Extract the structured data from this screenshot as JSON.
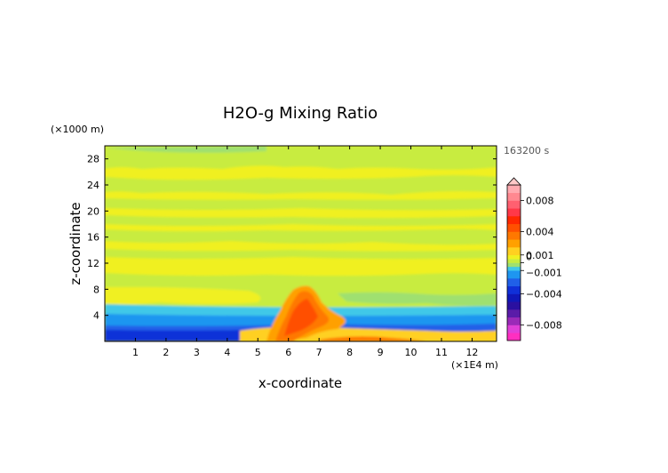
{
  "chart_data": {
    "type": "heatmap",
    "title": "H2O-g Mixing Ratio",
    "xlabel": "x-coordinate",
    "ylabel": "z-coordinate",
    "x_unit_label": "(×1E4 m)",
    "y_unit_label": "(×1000 m)",
    "time_label": "163200 s",
    "xlim": [
      0,
      12.8
    ],
    "ylim": [
      0,
      30
    ],
    "x_ticks": [
      1,
      2,
      3,
      4,
      5,
      6,
      7,
      8,
      9,
      10,
      11,
      12
    ],
    "y_ticks": [
      4,
      8,
      12,
      16,
      20,
      24,
      28
    ],
    "x_tick_labels": [
      "1",
      "2",
      "3",
      "4",
      "5",
      "6",
      "7",
      "8",
      "9",
      "10",
      "11",
      "12"
    ],
    "y_tick_labels": [
      "4",
      "8",
      "12",
      "16",
      "20",
      "24",
      "28"
    ],
    "colorbar": {
      "levels": [
        -0.01,
        -0.009,
        -0.008,
        -0.007,
        -0.006,
        -0.005,
        -0.004,
        -0.003,
        -0.002,
        -0.001,
        -0.0005,
        0,
        0.0005,
        0.001,
        0.002,
        0.003,
        0.004,
        0.005,
        0.006,
        0.007,
        0.008,
        0.009,
        0.01
      ],
      "colors": [
        "#ff2fc0",
        "#e040d8",
        "#9a2ab8",
        "#5a1ca8",
        "#2a10a0",
        "#1018b8",
        "#1030d8",
        "#2060e8",
        "#1e96f0",
        "#40c8e8",
        "#9fe070",
        "#c8ec40",
        "#f0f020",
        "#ffd020",
        "#ffa000",
        "#ff7800",
        "#ff5000",
        "#ff2800",
        "#ff3848",
        "#ff6070",
        "#ff8890",
        "#ffaab0"
      ],
      "tick_values": [
        0.008,
        0.004,
        0.001,
        0,
        -0.001,
        -0.004,
        -0.008
      ],
      "tick_labels": [
        "0.008",
        "0.004",
        "0.001",
        "0",
        "−0.001",
        "−0.004",
        "−0.008"
      ]
    },
    "field": {
      "description_bands": [
        {
          "z_range": [
            0,
            2
          ],
          "value": -0.005
        },
        {
          "z_range": [
            2,
            4
          ],
          "value": -0.003
        },
        {
          "z_range": [
            4,
            30
          ],
          "value": "alternating yellow (~0.0005) and green (~0) horizontal bands"
        }
      ],
      "plume": {
        "x_range": [
          5.5,
          7.5
        ],
        "z_range": [
          0,
          8.5
        ],
        "peak_value": 0.004
      }
    }
  }
}
